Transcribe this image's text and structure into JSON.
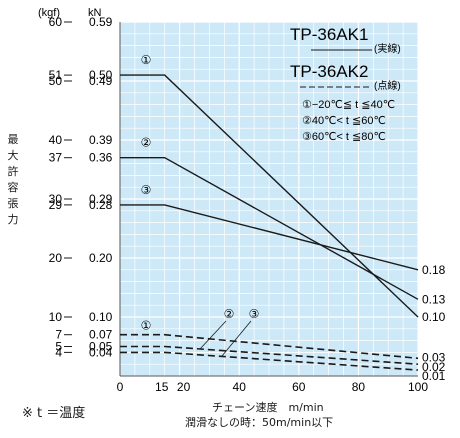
{
  "chart_data": {
    "type": "line",
    "unit_left": "(kgf)",
    "unit_right": "kN",
    "ylabel": "最大許容張力",
    "xlabel": "チェーン速度　m/min",
    "xlabel_sub": "潤滑なしの時：50m/min以下",
    "note": "※ t ＝温度",
    "x_ticks": [
      "0",
      "15",
      "20",
      "40",
      "60",
      "80",
      "100"
    ],
    "x_tick_values": [
      0,
      15,
      20,
      40,
      60,
      80,
      100
    ],
    "xlim": [
      0,
      100
    ],
    "y_kgf_ticks": [
      "60",
      "51",
      "50",
      "40",
      "37",
      "30",
      "29",
      "20",
      "10",
      "7",
      "5",
      "4"
    ],
    "y_kgf_values": [
      60,
      51,
      50,
      40,
      37,
      30,
      29,
      20,
      10,
      7,
      5,
      4
    ],
    "y_kn_ticks": [
      "0.59",
      "0.50",
      "0.49",
      "0.39",
      "0.36",
      "0.29",
      "0.28",
      "0.20",
      "0.10",
      "0.07",
      "0.05",
      "0.04"
    ],
    "y_kn_values": [
      60,
      51,
      50,
      40,
      37,
      30,
      29,
      20,
      10,
      7,
      5,
      4
    ],
    "ylim": [
      0,
      60
    ],
    "right_labels": [
      "0.18",
      "0.13",
      "0.10",
      "0.03",
      "0.02",
      "0.01"
    ],
    "right_label_values": [
      18,
      13,
      10,
      3,
      2,
      1
    ],
    "legend": {
      "tp1": "TP-36AK1",
      "tp1_style": "(実線)",
      "tp2": "TP-36AK2",
      "tp2_style": "(点線)",
      "cond1": "①−20℃≦ t ≦40℃",
      "cond2": "②40℃< t ≦60℃",
      "cond3": "③60℃< t ≦80℃"
    },
    "marker_labels": [
      "①",
      "②",
      "③"
    ],
    "series": [
      {
        "model": "TP-36AK1",
        "style": "solid",
        "marker": "①",
        "x": [
          0,
          15,
          100
        ],
        "y": [
          51,
          51,
          10
        ]
      },
      {
        "model": "TP-36AK1",
        "style": "solid",
        "marker": "②",
        "x": [
          0,
          15,
          100
        ],
        "y": [
          37,
          37,
          13
        ]
      },
      {
        "model": "TP-36AK1",
        "style": "solid",
        "marker": "③",
        "x": [
          0,
          15,
          100
        ],
        "y": [
          29,
          29,
          18
        ]
      },
      {
        "model": "TP-36AK2",
        "style": "dashed",
        "marker": "①",
        "x": [
          0,
          15,
          100
        ],
        "y": [
          7,
          7,
          3
        ]
      },
      {
        "model": "TP-36AK2",
        "style": "dashed",
        "marker": "②",
        "x": [
          0,
          15,
          100
        ],
        "y": [
          5,
          5,
          2
        ]
      },
      {
        "model": "TP-36AK2",
        "style": "dashed",
        "marker": "③",
        "x": [
          0,
          15,
          100
        ],
        "y": [
          4,
          4,
          1
        ]
      }
    ],
    "grid": true,
    "colors": {
      "plot_bg": "#cde8f7",
      "grid": "#ffffff",
      "line": "#1a1a1a"
    }
  }
}
